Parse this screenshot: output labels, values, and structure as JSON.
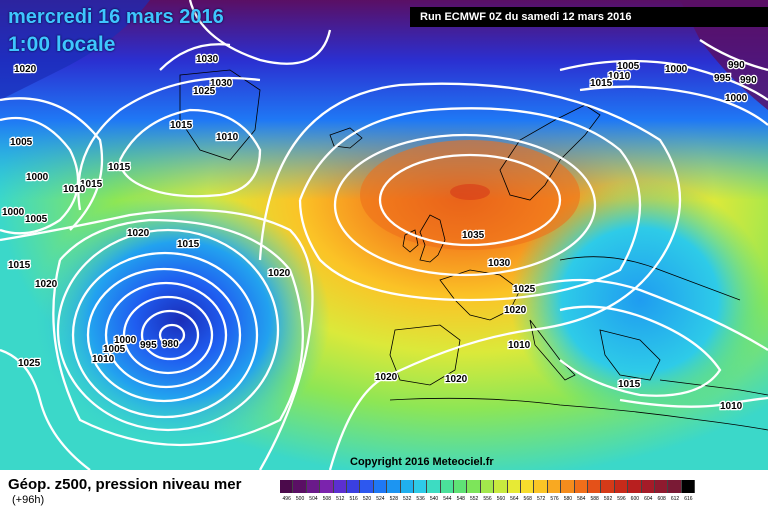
{
  "header": {
    "date": "mercredi 16 mars 2016",
    "time": "1:00 locale",
    "run": "Run ECMWF 0Z du samedi 12 mars 2016"
  },
  "footer": {
    "field": "Géop. z500, pression niveau mer",
    "lead": "(+96h)",
    "copyright": "Copyright 2016 Meteociel.fr"
  },
  "colorbar": {
    "ticks": [
      "496",
      "500",
      "504",
      "508",
      "512",
      "516",
      "520",
      "524",
      "528",
      "532",
      "536",
      "540",
      "544",
      "548",
      "552",
      "556",
      "560",
      "564",
      "568",
      "572",
      "576",
      "580",
      "584",
      "588",
      "592",
      "596",
      "600",
      "604",
      "608",
      "612",
      "616"
    ],
    "colors": [
      "#4b0a4b",
      "#5a0f64",
      "#6a1a8a",
      "#7b23ad",
      "#5c2fd0",
      "#3a3fe0",
      "#2d58ef",
      "#1f78f5",
      "#1c95f2",
      "#20b0ee",
      "#2ecbe8",
      "#3ddcc2",
      "#4be09a",
      "#5fe276",
      "#7de55a",
      "#a3e84c",
      "#c8ea3f",
      "#e7ea35",
      "#f7dd2d",
      "#fbc526",
      "#f9a921",
      "#f58c1d",
      "#f06e1a",
      "#e45119",
      "#d53a18",
      "#c72a1a",
      "#b81f1f",
      "#a51b28",
      "#8f1a2f",
      "#7a1a35",
      "#000000"
    ]
  },
  "isobar_labels": [
    "1020",
    "1030",
    "1030",
    "1025",
    "1015",
    "1010",
    "1005",
    "1000",
    "1015",
    "1015",
    "1010",
    "1000",
    "1005",
    "1020",
    "1015",
    "1015",
    "1020",
    "1020",
    "1025",
    "1000",
    "1005",
    "1010",
    "980",
    "995",
    "1020",
    "1020",
    "1035",
    "1030",
    "1025",
    "1020",
    "1010",
    "1015",
    "1010",
    "1005",
    "1000",
    "990",
    "995",
    "990",
    "1010",
    "1015",
    "1000"
  ]
}
